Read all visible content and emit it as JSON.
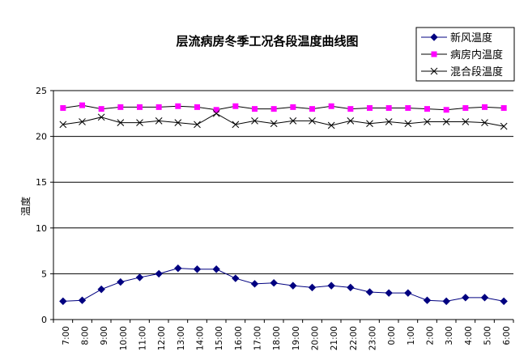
{
  "chart_data": {
    "type": "line",
    "title": "层流病房冬季工况各段温度曲线图",
    "xlabel": "",
    "ylabel": "温度",
    "ylim": [
      0,
      25
    ],
    "yticks": [
      0,
      5,
      10,
      15,
      20,
      25
    ],
    "grid": true,
    "legend_position": "top-right",
    "categories": [
      "7:00",
      "8:00",
      "9:00",
      "10:00",
      "11:00",
      "12:00",
      "13:00",
      "14:00",
      "15:00",
      "16:00",
      "17:00",
      "18:00",
      "19:00",
      "20:00",
      "21:00",
      "22:00",
      "23:00",
      "0:00",
      "1:00",
      "2:00",
      "3:00",
      "4:00",
      "5:00",
      "6:00"
    ],
    "series": [
      {
        "name": "新风温度",
        "color": "#000080",
        "marker": "diamond",
        "values": [
          2.0,
          2.1,
          3.3,
          4.1,
          4.6,
          5.0,
          5.6,
          5.5,
          5.5,
          4.5,
          3.9,
          4.0,
          3.7,
          3.5,
          3.7,
          3.5,
          3.0,
          2.9,
          2.9,
          2.1,
          2.0,
          2.4,
          2.4,
          2.0
        ]
      },
      {
        "name": "病房内温度",
        "color": "#ff00ff",
        "marker": "square",
        "values": [
          23.1,
          23.4,
          23.0,
          23.2,
          23.2,
          23.2,
          23.3,
          23.2,
          22.9,
          23.3,
          23.0,
          23.0,
          23.2,
          23.0,
          23.3,
          23.0,
          23.1,
          23.1,
          23.1,
          23.0,
          22.9,
          23.1,
          23.2,
          23.1
        ]
      },
      {
        "name": "混合段温度",
        "color": "#000000",
        "marker": "x",
        "values": [
          21.3,
          21.6,
          22.1,
          21.5,
          21.5,
          21.7,
          21.5,
          21.3,
          22.5,
          21.3,
          21.7,
          21.4,
          21.7,
          21.7,
          21.2,
          21.7,
          21.4,
          21.6,
          21.4,
          21.6,
          21.6,
          21.6,
          21.5,
          21.1
        ]
      }
    ]
  }
}
